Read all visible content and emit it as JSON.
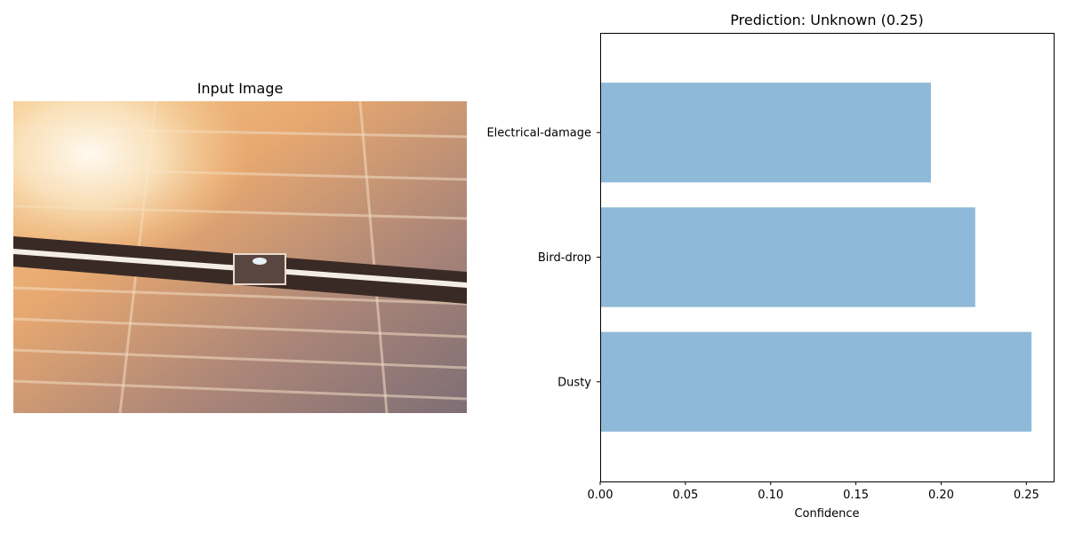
{
  "left_panel": {
    "title": "Input Image",
    "image_icon": "solar-panel-photo-icon"
  },
  "chart_data": {
    "type": "bar",
    "orientation": "horizontal",
    "title": "Prediction: Unknown (0.25)",
    "xlabel": "Confidence",
    "ylabel": "",
    "categories": [
      "Dusty",
      "Bird-drop",
      "Electrical-damage"
    ],
    "values": [
      0.253,
      0.22,
      0.194
    ],
    "xlim": [
      0,
      0.266
    ],
    "xticks": [
      "0.00",
      "0.05",
      "0.10",
      "0.15",
      "0.20",
      "0.25"
    ],
    "bar_color": "#8fb9d8",
    "grid": false,
    "legend": "none"
  }
}
